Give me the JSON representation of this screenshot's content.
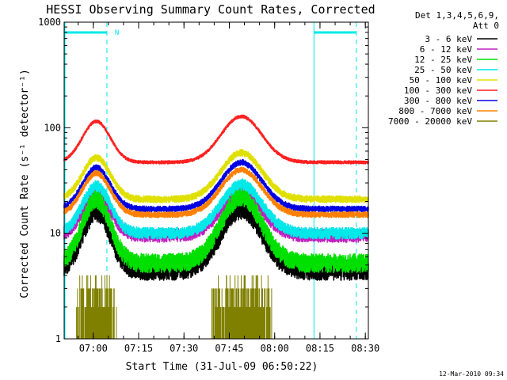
{
  "chart_data": {
    "type": "line",
    "title": "HESSI Observing Summary Count Rates, Corrected",
    "xlabel": "Start Time (31-Jul-09 06:50:22)",
    "ylabel": "Corrected Count Rate (s⁻¹ detector⁻¹)",
    "y_scale": "log",
    "ylim": [
      1,
      1000
    ],
    "y_ticks": [
      1,
      10,
      100,
      1000
    ],
    "y_tick_labels": [
      "1",
      "10",
      "100",
      "1000"
    ],
    "x_ticks": [
      "07:00",
      "07:15",
      "07:30",
      "07:45",
      "08:00",
      "08:15",
      "08:30"
    ],
    "xlim": [
      "06:50:22",
      "08:31:00"
    ],
    "grid": false,
    "legend_header": [
      "Det 1,3,4,5,6,9,",
      "Att 0"
    ],
    "legend_position": "right",
    "footer": "12-Mar-2010 09:34",
    "night_marker": "N",
    "night_intervals": [
      [
        "06:50:22",
        "07:04:30"
      ],
      [
        "08:13:00",
        "08:27:00"
      ]
    ],
    "series": [
      {
        "name": "3 - 6 keV",
        "color": "#000000",
        "min": 4.5,
        "peak1": 16,
        "peak2": 17,
        "noise": 0.55
      },
      {
        "name": "6 - 12 keV",
        "color": "#c020c0",
        "min": 9.5,
        "peak1": 23,
        "peak2": 24,
        "noise": 0.35
      },
      {
        "name": "12 - 25 keV",
        "color": "#00e000",
        "min": 5.2,
        "peak1": 21,
        "peak2": 22,
        "noise": 0.5
      },
      {
        "name": "25 - 50 keV",
        "color": "#00e8e8",
        "min": 10,
        "peak1": 28,
        "peak2": 29,
        "noise": 0.3
      },
      {
        "name": "50 - 100 keV",
        "color": "#e0e000",
        "min": 21,
        "peak1": 52,
        "peak2": 58,
        "noise": 0.18
      },
      {
        "name": "100 - 300 keV",
        "color": "#ff2020",
        "min": 47,
        "peak1": 115,
        "peak2": 128,
        "noise": 0.08
      },
      {
        "name": "300 - 800 keV",
        "color": "#ff8040",
        "min": 17,
        "peak1": 42,
        "peak2": 47,
        "noise": 0.15
      },
      {
        "name": "800 - 7000 keV",
        "color": "#ff8000",
        "min": 15,
        "peak1": 37,
        "peak2": 40,
        "noise": 0.15
      },
      {
        "name": "7000 - 20000 keV",
        "color": "#808000",
        "min": 1,
        "peak1": 3,
        "peak2": 3,
        "noise": 0
      }
    ],
    "series_plot_colors": {
      "300 - 800 keV": "#0000e0"
    },
    "peak_times": [
      "07:01:00",
      "07:49:00"
    ],
    "low_interval": [
      "07:10:00",
      "07:34:00"
    ],
    "low_interval_2": [
      "08:00:00",
      "08:31:00"
    ]
  }
}
